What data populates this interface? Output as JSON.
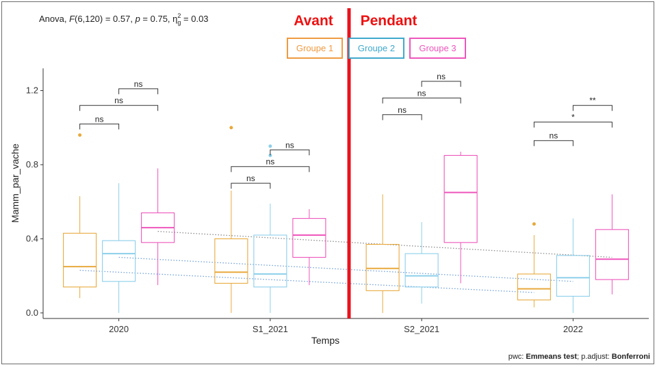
{
  "stats": {
    "prefix": "Anova, ",
    "F_symbol": "F",
    "F_args": "(6,120) = 0.57, ",
    "p_symbol": "p",
    "p_value": " = 0.75, ",
    "eta": "η",
    "eta_sup": "2",
    "eta_sub": "g",
    "eta_value": " = 0.03"
  },
  "phases": {
    "before": "Avant",
    "during": "Pendant"
  },
  "pwc": {
    "prefix": "pwc: ",
    "test": "Emmeans test",
    "mid": "; p.adjust: ",
    "adjust": "Bonferroni"
  },
  "colors": {
    "g1": "#e8a93c",
    "g2": "#8ccfea",
    "g3": "#ee55bb",
    "divider": "#e8121b"
  },
  "chart_data": {
    "type": "boxplot",
    "xlabel": "Temps",
    "ylabel": "Mamm_par_vache",
    "categories": [
      "2020",
      "S1_2021",
      "S2_2021",
      "2022"
    ],
    "ylim": [
      -0.03,
      1.32
    ],
    "yticks": [
      0.0,
      0.4,
      0.8,
      1.2
    ],
    "ytick_labels": [
      "0.0",
      "0.4",
      "0.8",
      "1.2"
    ],
    "legend": [
      {
        "name": "Groupe 1",
        "color": "#ef9a40"
      },
      {
        "name": "Groupe 2",
        "color": "#3ea9cc"
      },
      {
        "name": "Groupe 3",
        "color": "#ee55bb"
      }
    ],
    "series": [
      {
        "name": "Groupe 1",
        "boxes": [
          {
            "min": 0.08,
            "q1": 0.14,
            "median": 0.25,
            "q3": 0.43,
            "max": 0.63,
            "outliers": [
              0.96
            ]
          },
          {
            "min": 0.0,
            "q1": 0.16,
            "median": 0.22,
            "q3": 0.4,
            "max": 0.66,
            "outliers": [
              1.0
            ]
          },
          {
            "min": 0.0,
            "q1": 0.12,
            "median": 0.24,
            "q3": 0.37,
            "max": 0.64,
            "outliers": []
          },
          {
            "min": 0.03,
            "q1": 0.07,
            "median": 0.13,
            "q3": 0.21,
            "max": 0.42,
            "outliers": [
              0.48
            ]
          }
        ]
      },
      {
        "name": "Groupe 2",
        "boxes": [
          {
            "min": 0.0,
            "q1": 0.17,
            "median": 0.32,
            "q3": 0.39,
            "max": 0.7,
            "outliers": []
          },
          {
            "min": 0.0,
            "q1": 0.14,
            "median": 0.21,
            "q3": 0.42,
            "max": 0.59,
            "outliers": [
              0.9,
              0.85
            ]
          },
          {
            "min": 0.05,
            "q1": 0.14,
            "median": 0.2,
            "q3": 0.32,
            "max": 0.49,
            "outliers": []
          },
          {
            "min": 0.0,
            "q1": 0.09,
            "median": 0.19,
            "q3": 0.31,
            "max": 0.51,
            "outliers": []
          }
        ]
      },
      {
        "name": "Groupe 3",
        "boxes": [
          {
            "min": 0.15,
            "q1": 0.38,
            "median": 0.46,
            "q3": 0.54,
            "max": 0.78,
            "outliers": []
          },
          {
            "min": 0.15,
            "q1": 0.3,
            "median": 0.42,
            "q3": 0.51,
            "max": 0.56,
            "outliers": []
          },
          {
            "min": 0.16,
            "q1": 0.38,
            "median": 0.65,
            "q3": 0.85,
            "max": 0.87,
            "outliers": []
          },
          {
            "min": 0.1,
            "q1": 0.18,
            "median": 0.29,
            "q3": 0.45,
            "max": 0.64,
            "outliers": []
          }
        ]
      }
    ],
    "trend_lines": [
      {
        "group": "Groupe 1",
        "color": "#6f9fd8",
        "style": "dotted",
        "from": {
          "x": "2020",
          "y": 0.23
        },
        "to": {
          "x": "2022",
          "y": 0.11
        }
      },
      {
        "group": "Groupe 2",
        "color": "#6f9fd8",
        "style": "dotted",
        "from": {
          "x": "2020",
          "y": 0.3
        },
        "to": {
          "x": "2022",
          "y": 0.17
        }
      },
      {
        "group": "Groupe 3",
        "color": "#8a8a8a",
        "style": "dotted",
        "from": {
          "x": "2020",
          "y": 0.44
        },
        "to": {
          "x": "2022",
          "y": 0.3
        }
      }
    ],
    "comparisons": [
      {
        "category": "2020",
        "from": "Groupe 1",
        "to": "Groupe 2",
        "y": 1.02,
        "label": "ns"
      },
      {
        "category": "2020",
        "from": "Groupe 1",
        "to": "Groupe 3",
        "y": 1.12,
        "label": "ns"
      },
      {
        "category": "2020",
        "from": "Groupe 2",
        "to": "Groupe 3",
        "y": 1.21,
        "label": "ns"
      },
      {
        "category": "S1_2021",
        "from": "Groupe 1",
        "to": "Groupe 2",
        "y": 0.7,
        "label": "ns"
      },
      {
        "category": "S1_2021",
        "from": "Groupe 1",
        "to": "Groupe 3",
        "y": 0.79,
        "label": "ns"
      },
      {
        "category": "S1_2021",
        "from": "Groupe 2",
        "to": "Groupe 3",
        "y": 0.88,
        "label": "ns"
      },
      {
        "category": "S2_2021",
        "from": "Groupe 1",
        "to": "Groupe 2",
        "y": 1.07,
        "label": "ns"
      },
      {
        "category": "S2_2021",
        "from": "Groupe 1",
        "to": "Groupe 3",
        "y": 1.16,
        "label": "ns"
      },
      {
        "category": "S2_2021",
        "from": "Groupe 2",
        "to": "Groupe 3",
        "y": 1.25,
        "label": "ns"
      },
      {
        "category": "2022",
        "from": "Groupe 1",
        "to": "Groupe 2",
        "y": 0.93,
        "label": "ns"
      },
      {
        "category": "2022",
        "from": "Groupe 1",
        "to": "Groupe 3",
        "y": 1.03,
        "label": "*"
      },
      {
        "category": "2022",
        "from": "Groupe 2",
        "to": "Groupe 3",
        "y": 1.12,
        "label": "**"
      }
    ],
    "divider_between": [
      "S1_2021",
      "S2_2021"
    ],
    "grid": false
  }
}
